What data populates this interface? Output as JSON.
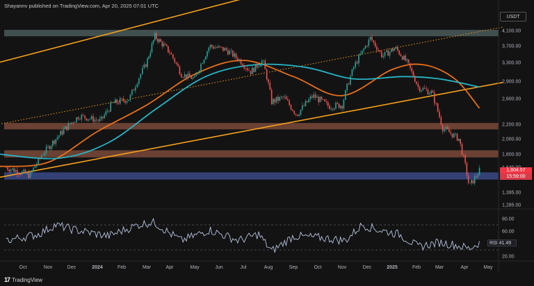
{
  "header": {
    "publisher_line": "Shayannv published on TradingView.com, Apr 20, 2025 07:01 UTC"
  },
  "currency_badge": "USDT",
  "price_tags": {
    "last_price": "1,604.57",
    "countdown": "15:59:00"
  },
  "rsi_tag": {
    "label": "RSI",
    "value": "41.49"
  },
  "footer": {
    "logo_glyph": "17",
    "brand": "TradingView"
  },
  "colors": {
    "background": "#131313",
    "candle_up": "#26a69a",
    "candle_down": "#ef5350",
    "ma_orange": "#e8701a",
    "ma_cyan": "#26b5c7",
    "channel": "#f7a21b",
    "zone_resistance": "#4a5a5a",
    "zone_brown": "#7a4a3a",
    "zone_support": "#3a4a8a",
    "rsi_line": "#b8c4e0"
  },
  "chart_data": [
    {
      "type": "candlestick",
      "title": "",
      "pair_quote": "USDT",
      "y_ticks": [
        "4,100.00",
        "3,700.00",
        "3,300.00",
        "2,900.00",
        "2,600.00",
        "2,200.00",
        "2,000.00",
        "1,800.00",
        "1,640.00",
        "1,395.00",
        "1,285.00"
      ],
      "x_ticks": [
        "Oct",
        "Nov",
        "Dec",
        "2024",
        "Feb",
        "Mar",
        "Apr",
        "May",
        "Jun",
        "Jul",
        "Aug",
        "Sep",
        "Oct",
        "Nov",
        "Dec",
        "2025",
        "Feb",
        "Mar",
        "Apr",
        "May"
      ],
      "price_path": [
        {
          "date": "2023-09-10",
          "price": 1640
        },
        {
          "date": "2023-10-10",
          "price": 1560
        },
        {
          "date": "2023-10-25",
          "price": 1800
        },
        {
          "date": "2023-11-15",
          "price": 2050
        },
        {
          "date": "2023-12-10",
          "price": 2330
        },
        {
          "date": "2024-01-05",
          "price": 2250
        },
        {
          "date": "2024-01-20",
          "price": 2520
        },
        {
          "date": "2024-02-10",
          "price": 2600
        },
        {
          "date": "2024-03-01",
          "price": 3300
        },
        {
          "date": "2024-03-12",
          "price": 3950
        },
        {
          "date": "2024-04-01",
          "price": 3550
        },
        {
          "date": "2024-04-15",
          "price": 3050
        },
        {
          "date": "2024-05-01",
          "price": 2950
        },
        {
          "date": "2024-05-20",
          "price": 3700
        },
        {
          "date": "2024-06-10",
          "price": 3600
        },
        {
          "date": "2024-06-25",
          "price": 3380
        },
        {
          "date": "2024-07-10",
          "price": 3100
        },
        {
          "date": "2024-07-25",
          "price": 3350
        },
        {
          "date": "2024-08-05",
          "price": 2550
        },
        {
          "date": "2024-08-20",
          "price": 2620
        },
        {
          "date": "2024-09-05",
          "price": 2350
        },
        {
          "date": "2024-09-25",
          "price": 2650
        },
        {
          "date": "2024-10-15",
          "price": 2480
        },
        {
          "date": "2024-11-01",
          "price": 2500
        },
        {
          "date": "2024-11-15",
          "price": 3200
        },
        {
          "date": "2024-12-05",
          "price": 3900
        },
        {
          "date": "2024-12-20",
          "price": 3450
        },
        {
          "date": "2025-01-05",
          "price": 3650
        },
        {
          "date": "2025-01-20",
          "price": 3300
        },
        {
          "date": "2025-02-03",
          "price": 2800
        },
        {
          "date": "2025-02-20",
          "price": 2700
        },
        {
          "date": "2025-03-05",
          "price": 2150
        },
        {
          "date": "2025-03-25",
          "price": 2000
        },
        {
          "date": "2025-04-07",
          "price": 1450
        },
        {
          "date": "2025-04-20",
          "price": 1604.57
        }
      ],
      "moving_averages": [
        {
          "color": "#e8701a",
          "points": [
            {
              "date": "2023-09-01",
              "price": 1650
            },
            {
              "date": "2023-11-01",
              "price": 1700
            },
            {
              "date": "2024-01-01",
              "price": 2100
            },
            {
              "date": "2024-03-01",
              "price": 2500
            },
            {
              "date": "2024-05-01",
              "price": 3050
            },
            {
              "date": "2024-07-01",
              "price": 3350
            },
            {
              "date": "2024-09-01",
              "price": 3000
            },
            {
              "date": "2024-11-01",
              "price": 2650
            },
            {
              "date": "2025-01-01",
              "price": 3150
            },
            {
              "date": "2025-02-10",
              "price": 3250
            },
            {
              "date": "2025-03-20",
              "price": 2950
            },
            {
              "date": "2025-04-20",
              "price": 2450
            }
          ]
        },
        {
          "color": "#26b5c7",
          "points": [
            {
              "date": "2023-09-01",
              "price": 1800
            },
            {
              "date": "2023-11-15",
              "price": 1750
            },
            {
              "date": "2024-01-15",
              "price": 1950
            },
            {
              "date": "2024-03-15",
              "price": 2450
            },
            {
              "date": "2024-05-15",
              "price": 3000
            },
            {
              "date": "2024-07-15",
              "price": 3250
            },
            {
              "date": "2024-09-15",
              "price": 3200
            },
            {
              "date": "2024-11-15",
              "price": 2950
            },
            {
              "date": "2025-01-15",
              "price": 3000
            },
            {
              "date": "2025-03-01",
              "price": 2950
            },
            {
              "date": "2025-04-20",
              "price": 2800
            }
          ]
        }
      ],
      "horizontal_zones": [
        {
          "name": "resistance",
          "low": 3950,
          "high": 4120,
          "color": "#4a5a5a"
        },
        {
          "name": "upper-demand",
          "low": 2130,
          "high": 2220,
          "color": "#7a4a3a"
        },
        {
          "name": "mid-demand",
          "low": 1760,
          "high": 1850,
          "color": "#7a4a3a"
        },
        {
          "name": "support",
          "low": 1520,
          "high": 1590,
          "color": "#3a4a8a"
        }
      ],
      "trend_lines": [
        {
          "name": "channel-top",
          "style": "solid",
          "from": {
            "date": "2023-09-01",
            "price": 3300
          },
          "to": {
            "date": "2024-07-01",
            "price": 5000
          }
        },
        {
          "name": "channel-bottom",
          "style": "solid",
          "from": {
            "date": "2023-09-01",
            "price": 1540
          },
          "to": {
            "date": "2025-05-20",
            "price": 2880
          }
        },
        {
          "name": "channel-mid",
          "style": "dotted",
          "from": {
            "date": "2023-09-01",
            "price": 2200
          },
          "to": {
            "date": "2025-05-20",
            "price": 4200
          }
        }
      ],
      "last_price": 1604.57
    },
    {
      "type": "line",
      "title": "RSI",
      "y_ticks": [
        "80.00",
        "60.00",
        "20.00"
      ],
      "y_levels": [
        70,
        30
      ],
      "last_value": 41.49,
      "series": [
        {
          "color": "#b8c4e0",
          "points": [
            {
              "date": "2023-09-10",
              "value": 45
            },
            {
              "date": "2023-10-20",
              "value": 55
            },
            {
              "date": "2023-11-10",
              "value": 70
            },
            {
              "date": "2023-12-05",
              "value": 62
            },
            {
              "date": "2024-01-15",
              "value": 52
            },
            {
              "date": "2024-02-20",
              "value": 70
            },
            {
              "date": "2024-03-10",
              "value": 75
            },
            {
              "date": "2024-04-15",
              "value": 45
            },
            {
              "date": "2024-05-20",
              "value": 62
            },
            {
              "date": "2024-06-25",
              "value": 45
            },
            {
              "date": "2024-07-20",
              "value": 55
            },
            {
              "date": "2024-08-05",
              "value": 28
            },
            {
              "date": "2024-09-01",
              "value": 52
            },
            {
              "date": "2024-10-01",
              "value": 50
            },
            {
              "date": "2024-11-05",
              "value": 45
            },
            {
              "date": "2024-11-25",
              "value": 70
            },
            {
              "date": "2024-12-15",
              "value": 62
            },
            {
              "date": "2025-01-10",
              "value": 55
            },
            {
              "date": "2025-02-03",
              "value": 35
            },
            {
              "date": "2025-03-01",
              "value": 42
            },
            {
              "date": "2025-03-20",
              "value": 38
            },
            {
              "date": "2025-04-07",
              "value": 32
            },
            {
              "date": "2025-04-20",
              "value": 41.49
            }
          ]
        }
      ]
    }
  ]
}
